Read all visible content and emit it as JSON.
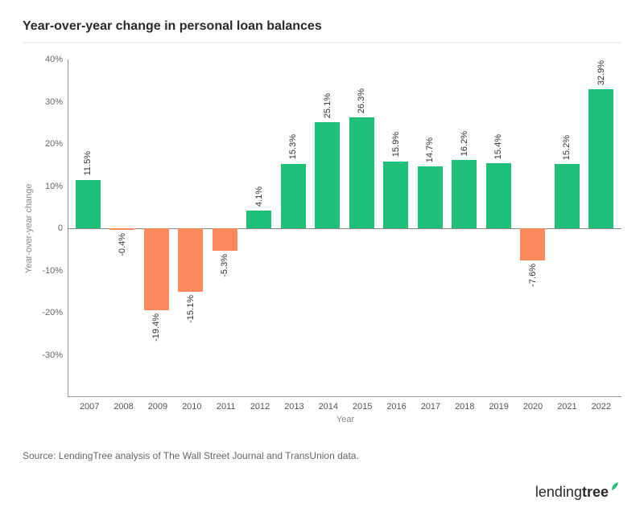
{
  "title": "Year-over-year change in personal loan balances",
  "source": "Source: LendingTree analysis of The Wall Street Journal and TransUnion data.",
  "logo": {
    "part1": "lending",
    "part2": "tree"
  },
  "chart": {
    "type": "bar",
    "xlabel": "Year",
    "ylabel": "Year-over-year change",
    "ylim": [
      -40,
      40
    ],
    "yticks": [
      -30,
      -20,
      -10,
      0,
      10,
      20,
      30,
      40
    ],
    "ytick_labels": [
      "-30%",
      "-20%",
      "-10%",
      "0",
      "10%",
      "20%",
      "30%",
      "40%"
    ],
    "categories": [
      "2007",
      "2008",
      "2009",
      "2010",
      "2011",
      "2012",
      "2013",
      "2014",
      "2015",
      "2016",
      "2017",
      "2018",
      "2019",
      "2020",
      "2021",
      "2022"
    ],
    "values": [
      11.5,
      -0.4,
      -19.4,
      -15.1,
      -5.3,
      4.1,
      15.3,
      25.1,
      26.3,
      15.9,
      14.7,
      16.2,
      15.4,
      -7.6,
      15.2,
      32.9
    ],
    "value_labels": [
      "11.5%",
      "-0.4%",
      "-19.4%",
      "-15.1%",
      "-5.3%",
      "4.1%",
      "15.3%",
      "25.1%",
      "26.3%",
      "15.9%",
      "14.7%",
      "16.2%",
      "15.4%",
      "-7.6%",
      "15.2%",
      "32.9%"
    ],
    "positive_color": "#21c07a",
    "negative_color": "#ff8a5c",
    "axis_color": "#888888",
    "background_color": "#ffffff",
    "bar_width": 0.72,
    "title_fontsize": 16,
    "label_fontsize": 11
  }
}
